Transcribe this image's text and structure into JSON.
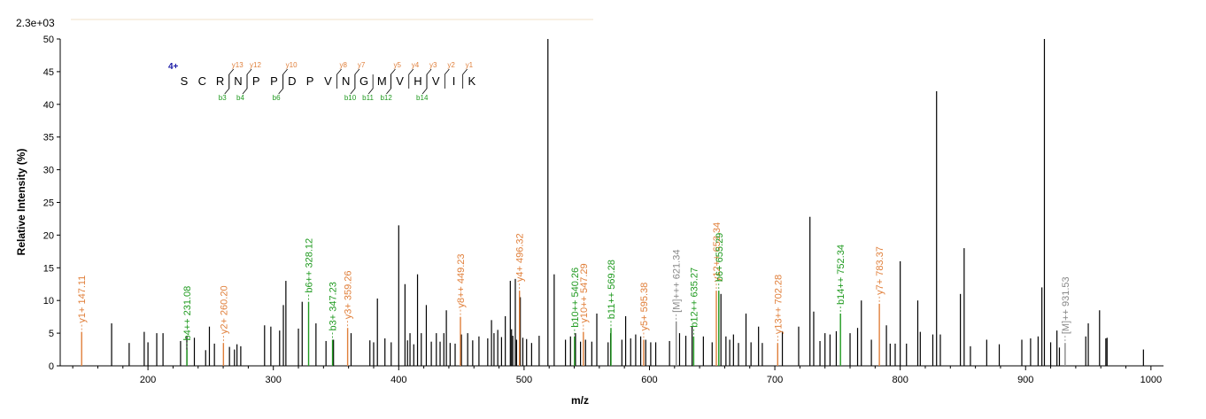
{
  "chart_data": {
    "type": "bar",
    "max_intensity_label": "2.3e+03",
    "xlabel": "m/z",
    "ylabel": "Relative   Intensity (%)",
    "xlim": [
      130,
      1010
    ],
    "ylim": [
      0,
      50
    ],
    "x_ticks": [
      200,
      300,
      400,
      500,
      600,
      700,
      800,
      900,
      1000
    ],
    "y_ticks": [
      0,
      5,
      10,
      15,
      20,
      25,
      30,
      35,
      40,
      45,
      50
    ],
    "colors": {
      "y": "#e07f3a",
      "b": "#1f9a1f",
      "M": "#888888",
      "unlabeled": "#000000",
      "charge": "#1a1aa6"
    },
    "peaks": [
      [
        171,
        6.5
      ],
      [
        185,
        3.5
      ],
      [
        197,
        5.2
      ],
      [
        200,
        3.6
      ],
      [
        207,
        5.0
      ],
      [
        212,
        5.0
      ],
      [
        226,
        3.8
      ],
      [
        231,
        4.5
      ],
      [
        237,
        4.3
      ],
      [
        246,
        2.4
      ],
      [
        249,
        6.0
      ],
      [
        253,
        3.4
      ],
      [
        265,
        2.9
      ],
      [
        269,
        2.5
      ],
      [
        271,
        3.3
      ],
      [
        274,
        3.0
      ],
      [
        293,
        6.2
      ],
      [
        298,
        6.0
      ],
      [
        305,
        5.4
      ],
      [
        308,
        9.3
      ],
      [
        310,
        13.0
      ],
      [
        320,
        5.7
      ],
      [
        323,
        9.8
      ],
      [
        334,
        6.5
      ],
      [
        342,
        3.8
      ],
      [
        348,
        4.0
      ],
      [
        362,
        5.0
      ],
      [
        377,
        3.9
      ],
      [
        380,
        3.6
      ],
      [
        383,
        10.3
      ],
      [
        389,
        4.2
      ],
      [
        394,
        3.6
      ],
      [
        400,
        21.5
      ],
      [
        405,
        12.5
      ],
      [
        407,
        3.9
      ],
      [
        409,
        5.0
      ],
      [
        412,
        3.3
      ],
      [
        415,
        14.0
      ],
      [
        418,
        5.0
      ],
      [
        422,
        9.3
      ],
      [
        426,
        3.7
      ],
      [
        430,
        5.0
      ],
      [
        433,
        3.7
      ],
      [
        436,
        5.0
      ],
      [
        438,
        8.5
      ],
      [
        441,
        3.5
      ],
      [
        445,
        3.4
      ],
      [
        450,
        4.8
      ],
      [
        455,
        5.0
      ],
      [
        459,
        3.9
      ],
      [
        464,
        4.5
      ],
      [
        471,
        4.2
      ],
      [
        474,
        7.0
      ],
      [
        476,
        5.0
      ],
      [
        479,
        5.5
      ],
      [
        482,
        4.4
      ],
      [
        485,
        7.6
      ],
      [
        489,
        13.0
      ],
      [
        490,
        5.6
      ],
      [
        491,
        4.6
      ],
      [
        493,
        13.3
      ],
      [
        494,
        4.0
      ],
      [
        497,
        10.5
      ],
      [
        499,
        4.3
      ],
      [
        502,
        4.1
      ],
      [
        506,
        3.5
      ],
      [
        512,
        4.6
      ],
      [
        519,
        50.0
      ],
      [
        524,
        14.0
      ],
      [
        533,
        4.0
      ],
      [
        537,
        4.5
      ],
      [
        541,
        5.0
      ],
      [
        545,
        3.7
      ],
      [
        549,
        4.0
      ],
      [
        554,
        3.7
      ],
      [
        558,
        8.0
      ],
      [
        567,
        3.6
      ],
      [
        569,
        5.0
      ],
      [
        578,
        4.0
      ],
      [
        581,
        7.6
      ],
      [
        585,
        4.2
      ],
      [
        589,
        4.8
      ],
      [
        593,
        4.5
      ],
      [
        597,
        4.0
      ],
      [
        601,
        3.6
      ],
      [
        605,
        3.6
      ],
      [
        616,
        3.8
      ],
      [
        624,
        5.0
      ],
      [
        629,
        4.6
      ],
      [
        634,
        6.0
      ],
      [
        643,
        4.5
      ],
      [
        650,
        3.6
      ],
      [
        657,
        11.0
      ],
      [
        661,
        4.5
      ],
      [
        664,
        4.0
      ],
      [
        667,
        4.8
      ],
      [
        671,
        3.5
      ],
      [
        677,
        8.0
      ],
      [
        681,
        3.6
      ],
      [
        687,
        6.0
      ],
      [
        690,
        3.5
      ],
      [
        706,
        5.3
      ],
      [
        719,
        6.0
      ],
      [
        728,
        22.8
      ],
      [
        731,
        8.3
      ],
      [
        736,
        3.8
      ],
      [
        740,
        5.0
      ],
      [
        744,
        4.8
      ],
      [
        749,
        5.3
      ],
      [
        760,
        5.0
      ],
      [
        766,
        5.8
      ],
      [
        769,
        10.0
      ],
      [
        777,
        4.0
      ],
      [
        789,
        6.2
      ],
      [
        792,
        3.4
      ],
      [
        796,
        3.4
      ],
      [
        800,
        16.0
      ],
      [
        805,
        3.4
      ],
      [
        814,
        10.0
      ],
      [
        816,
        5.2
      ],
      [
        826,
        4.8
      ],
      [
        829,
        42.0
      ],
      [
        832,
        4.8
      ],
      [
        848,
        11.0
      ],
      [
        851,
        18.0
      ],
      [
        856,
        3.0
      ],
      [
        869,
        4.0
      ],
      [
        879,
        3.3
      ],
      [
        897,
        4.0
      ],
      [
        904,
        4.2
      ],
      [
        910,
        4.5
      ],
      [
        913,
        12.0
      ],
      [
        915,
        50.0
      ],
      [
        920,
        3.6
      ],
      [
        925,
        5.4
      ],
      [
        927,
        2.8
      ],
      [
        948,
        4.5
      ],
      [
        950,
        6.5
      ],
      [
        959,
        8.5
      ],
      [
        964,
        4.2
      ],
      [
        965,
        4.3
      ],
      [
        994,
        2.5
      ]
    ],
    "labeled_peaks": [
      {
        "mz": 147.11,
        "y": 5.2,
        "label": "y1+ 147.11",
        "type": "y"
      },
      {
        "mz": 231.08,
        "y": 2.5,
        "label": "b4++ 231.08",
        "type": "b"
      },
      {
        "mz": 260.2,
        "y": 3.5,
        "label": "y2+ 260.20",
        "type": "y"
      },
      {
        "mz": 328.12,
        "y": 9.8,
        "label": "b6++ 328.12",
        "type": "b"
      },
      {
        "mz": 347.23,
        "y": 4.0,
        "label": "b3+ 347.23",
        "type": "b"
      },
      {
        "mz": 359.26,
        "y": 5.8,
        "label": "y3+ 359.26",
        "type": "y"
      },
      {
        "mz": 449.23,
        "y": 7.5,
        "label": "y8++ 449.23",
        "type": "y"
      },
      {
        "mz": 496.32,
        "y": 11.5,
        "label": "y4+ 496.32",
        "type": "y"
      },
      {
        "mz": 540.26,
        "y": 4.5,
        "label": "b10++ 540.26",
        "type": "b"
      },
      {
        "mz": 547.29,
        "y": 5.2,
        "label": "y10++ 547.29",
        "type": "y"
      },
      {
        "mz": 569.28,
        "y": 5.8,
        "label": "b11++ 569.28",
        "type": "b"
      },
      {
        "mz": 595.38,
        "y": 4.0,
        "label": "y5+ 595.38",
        "type": "y"
      },
      {
        "mz": 621.34,
        "y": 6.8,
        "label": "[M]+++ 621.34",
        "type": "M"
      },
      {
        "mz": 635.27,
        "y": 4.5,
        "label": "b12++ 635.27",
        "type": "b"
      },
      {
        "mz": 653.34,
        "y": 11.5,
        "label": "y12++ 653.34",
        "type": "y"
      },
      {
        "mz": 655.29,
        "y": 11.5,
        "label": "b6+ 655.29",
        "type": "b"
      },
      {
        "mz": 702.28,
        "y": 3.5,
        "label": "y13++ 702.28",
        "type": "y"
      },
      {
        "mz": 752.34,
        "y": 8.0,
        "label": "b14++ 752.34",
        "type": "b"
      },
      {
        "mz": 783.37,
        "y": 9.5,
        "label": "y7+ 783.37",
        "type": "y"
      },
      {
        "mz": 931.53,
        "y": 3.5,
        "label": "[M]++ 931.53",
        "type": "M"
      }
    ],
    "peptide": {
      "charge": "4+",
      "sequence": [
        "S",
        "C",
        "R",
        "N",
        "P",
        "P",
        "D",
        "P",
        "V",
        "N",
        "G",
        "M",
        "V",
        "H",
        "V",
        "I",
        "K"
      ],
      "y_ions": [
        {
          "after": 3,
          "label": "y13"
        },
        {
          "after": 4,
          "label": "y12"
        },
        {
          "after": 6,
          "label": "y10"
        },
        {
          "after": 9,
          "label": "y8"
        },
        {
          "after": 10,
          "label": "y7"
        },
        {
          "after": 12,
          "label": "y5"
        },
        {
          "after": 13,
          "label": "y4"
        },
        {
          "after": 14,
          "label": "y3"
        },
        {
          "after": 15,
          "label": "y2"
        },
        {
          "after": 16,
          "label": "y1"
        }
      ],
      "b_ions": [
        {
          "after": 3,
          "label": "b3"
        },
        {
          "after": 4,
          "label": "b4"
        },
        {
          "after": 6,
          "label": "b6"
        },
        {
          "after": 10,
          "label": "b10"
        },
        {
          "after": 11,
          "label": "b11"
        },
        {
          "after": 12,
          "label": "b12"
        },
        {
          "after": 14,
          "label": "b14"
        }
      ]
    }
  }
}
